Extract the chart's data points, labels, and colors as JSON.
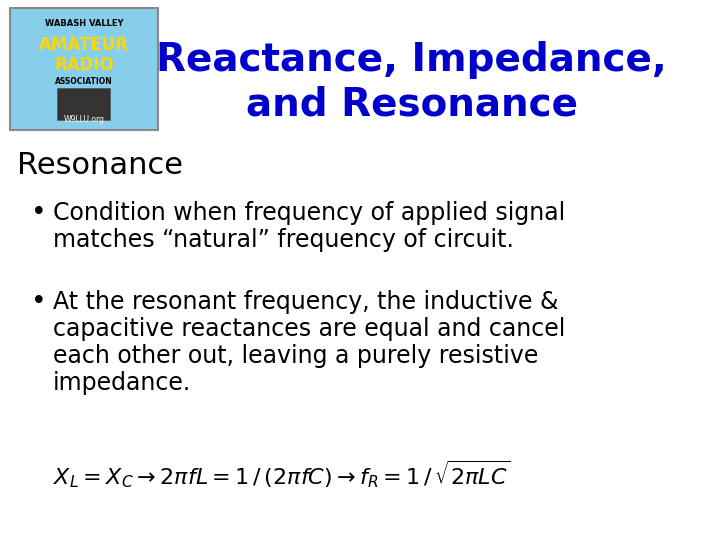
{
  "title_line1": "Reactance, Impedance,",
  "title_line2": "and Resonance",
  "title_color": "#0000CC",
  "title_fontsize": 28,
  "section_header": "Resonance",
  "section_header_fontsize": 22,
  "section_header_color": "#000000",
  "bullet1_line1": "Condition when frequency of applied signal",
  "bullet1_line2": "matches “natural” frequency of circuit.",
  "bullet2_line1": "At the resonant frequency, the inductive &",
  "bullet2_line2": "capacitive reactances are equal and cancel",
  "bullet2_line3": "each other out, leaving a purely resistive",
  "bullet2_line4": "impedance.",
  "bullet_fontsize": 17,
  "formula_fontsize": 16,
  "bg_color": "#FFFFFF",
  "text_color": "#000000",
  "bullet_color": "#000000",
  "logo_bg": "#87CEEB",
  "logo_text1": "WABASH VALLEY",
  "logo_text2": "AMATEUR",
  "logo_text3": "RADIO",
  "logo_text4": "ASSOCIATION",
  "logo_callsign": "W9LLU.org"
}
